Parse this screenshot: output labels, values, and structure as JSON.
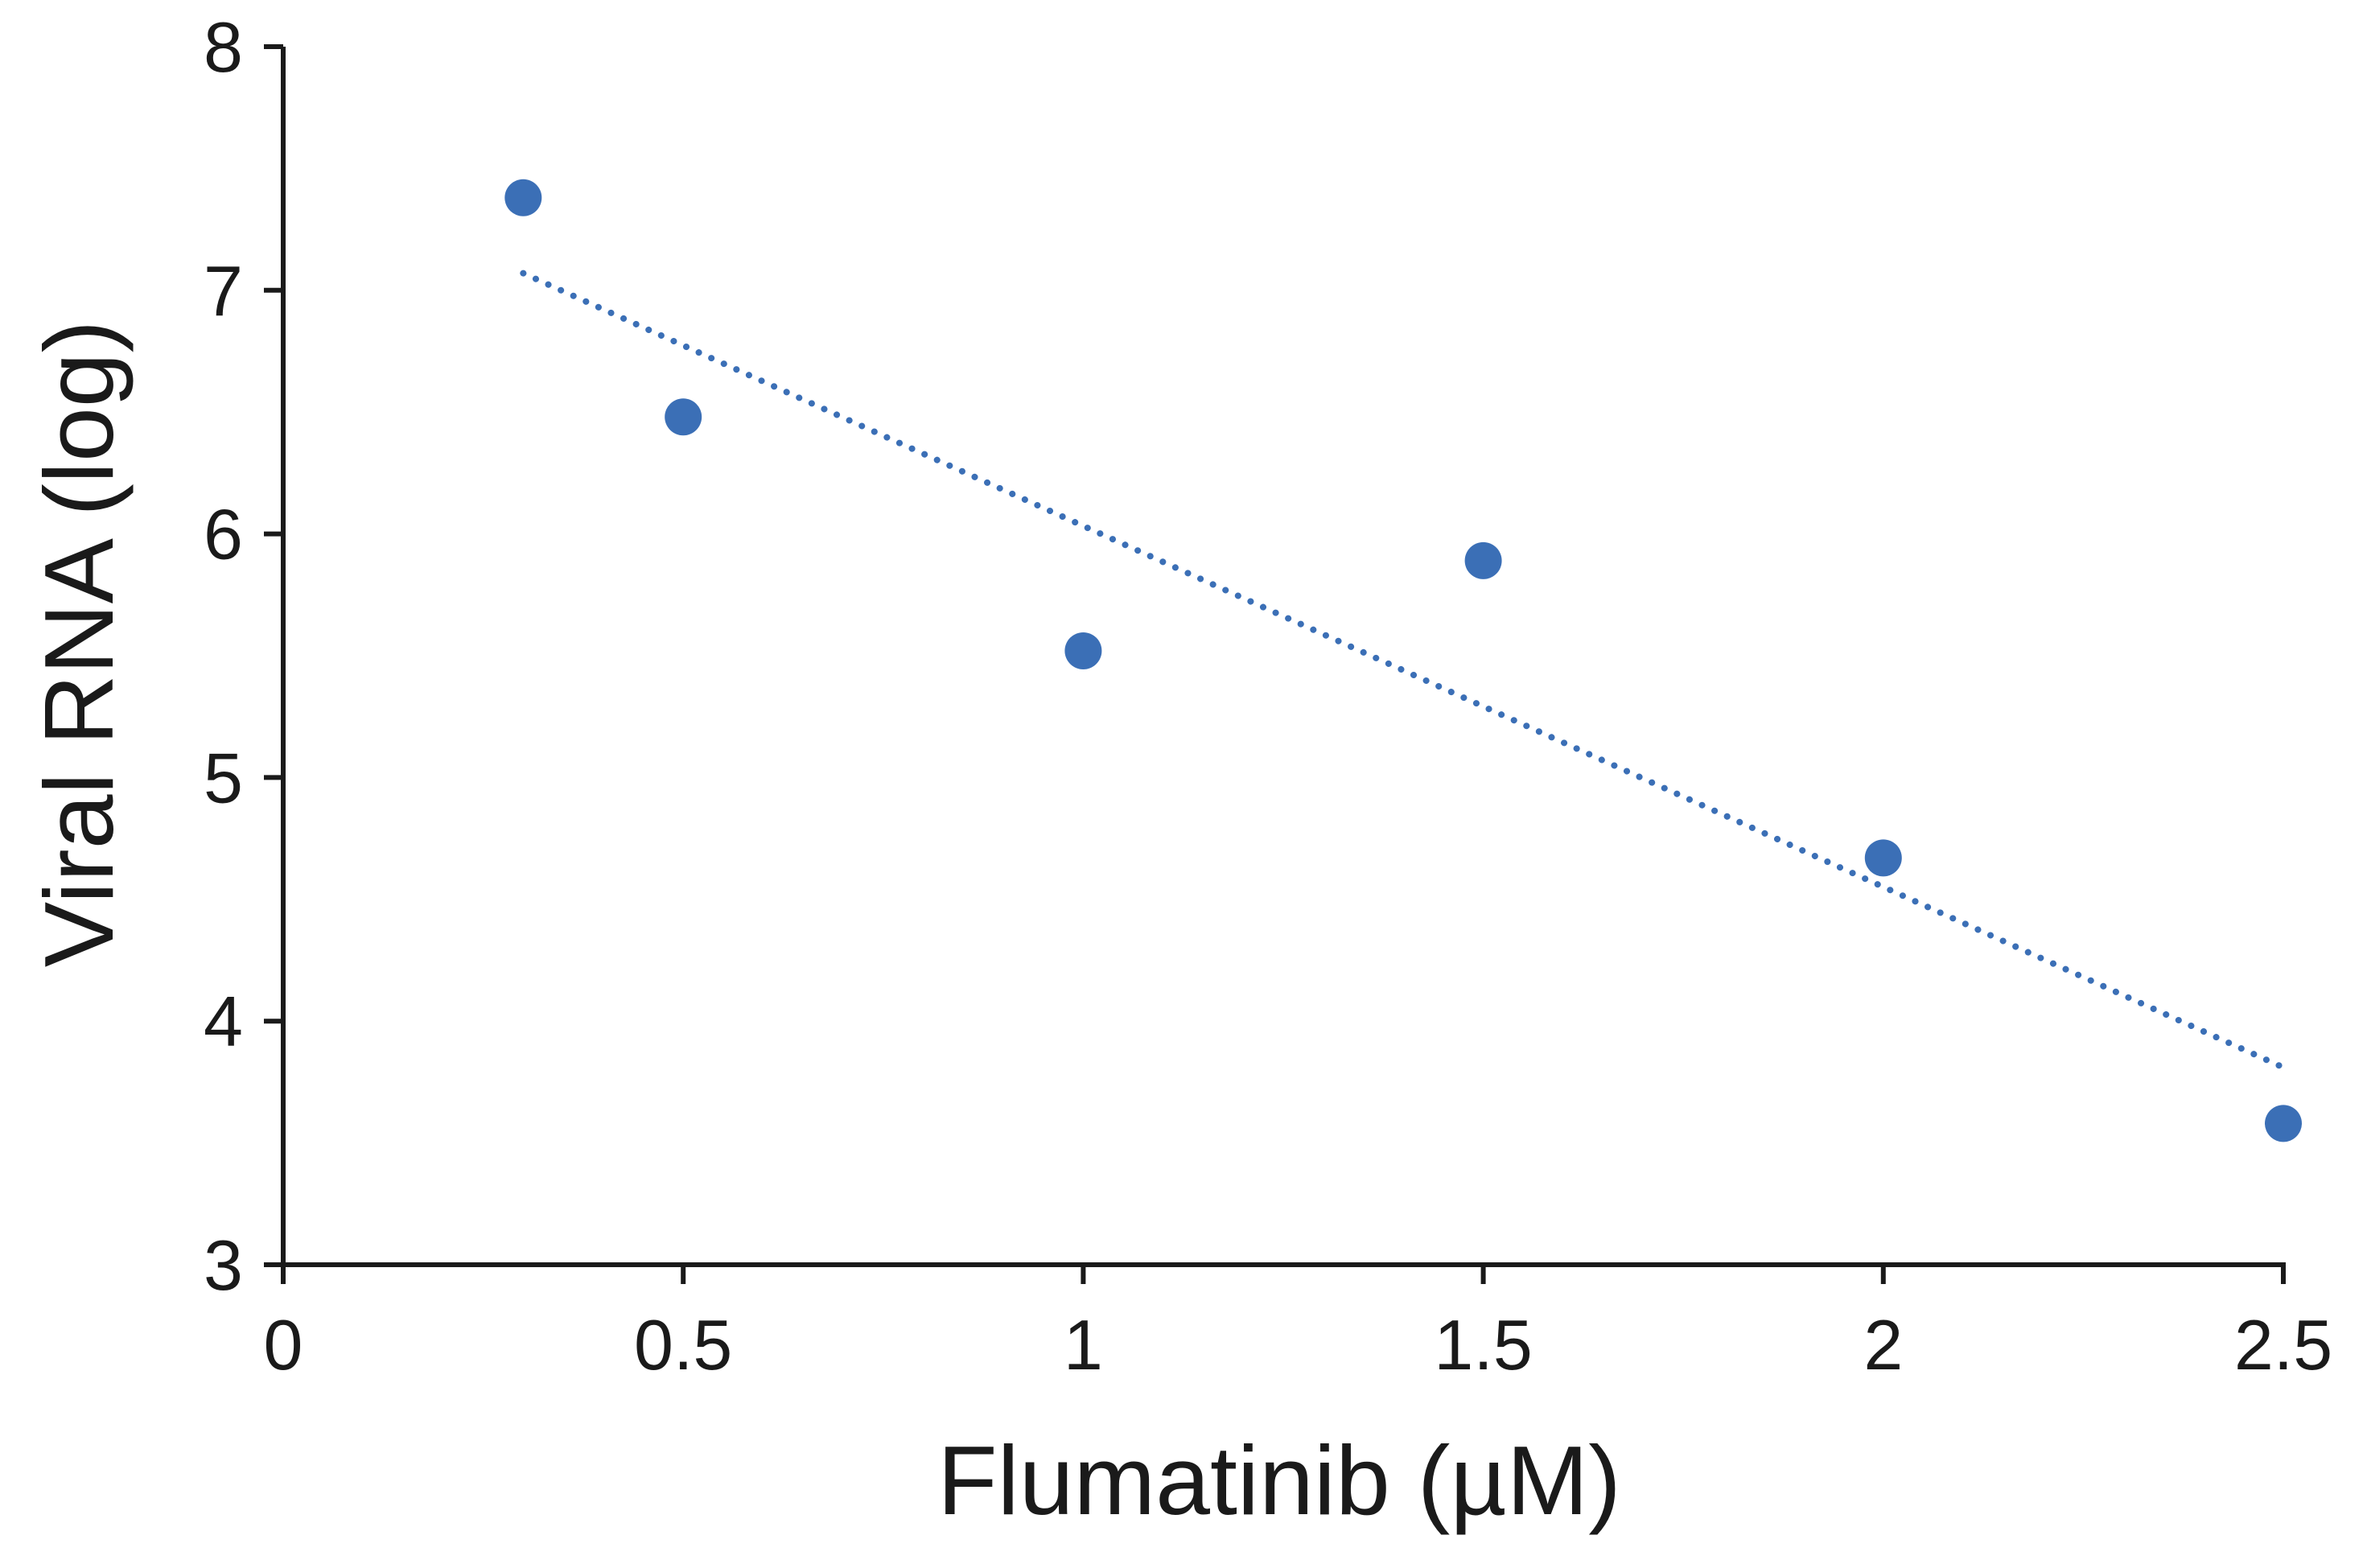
{
  "chart_data": {
    "type": "scatter",
    "xlabel": "Flumatinib (µM)",
    "ylabel": "Viral RNA (log)",
    "xlim": [
      0,
      2.5
    ],
    "ylim": [
      3,
      8
    ],
    "x_ticks": [
      "0",
      "0.5",
      "1",
      "1.5",
      "2",
      "2.5"
    ],
    "y_ticks": [
      "3",
      "4",
      "5",
      "6",
      "7",
      "8"
    ],
    "grid": false,
    "legend": "none",
    "series": [
      {
        "points": [
          {
            "x": 0.3,
            "y": 7.38
          },
          {
            "x": 0.5,
            "y": 6.48
          },
          {
            "x": 1.0,
            "y": 5.52
          },
          {
            "x": 1.5,
            "y": 5.89
          },
          {
            "x": 2.0,
            "y": 4.67
          },
          {
            "x": 2.5,
            "y": 3.58
          }
        ]
      }
    ],
    "trendline": {
      "type": "linear",
      "style": "dotted",
      "from": {
        "x": 0.3,
        "y": 7.07
      },
      "to": {
        "x": 2.5,
        "y": 3.81
      }
    },
    "colors": {
      "marker": "#3b6fb6",
      "trendline": "#3b6fb6",
      "axis": "#1a1a1a"
    }
  }
}
